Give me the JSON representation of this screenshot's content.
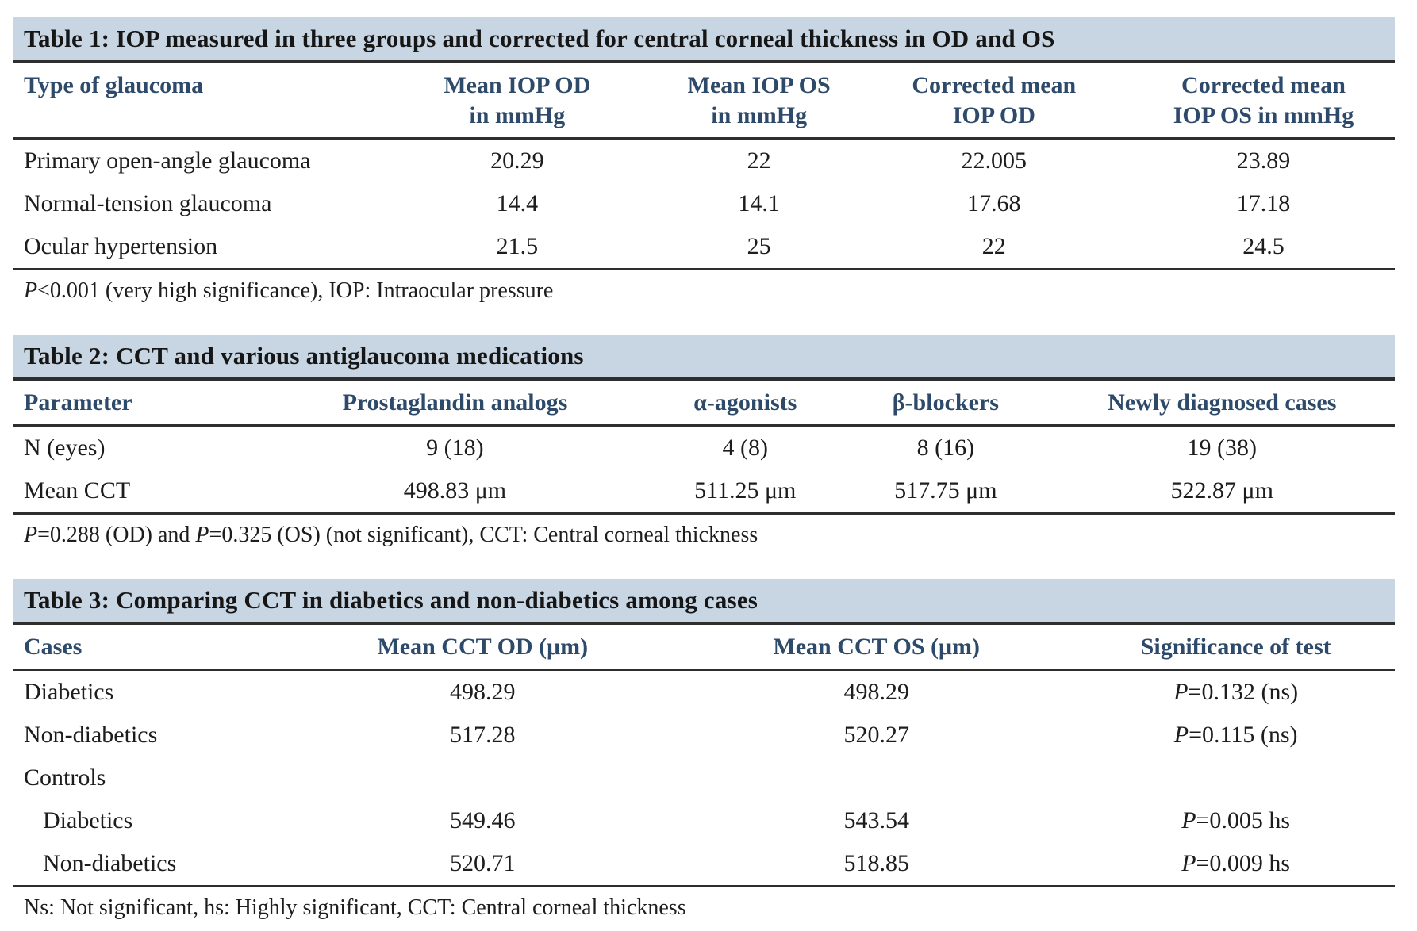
{
  "colors": {
    "title_bar_bg": "#c8d5e2",
    "header_text": "#2e4a6b",
    "body_text": "#1d1d1d",
    "rule": "#2e2e2e"
  },
  "tables": [
    {
      "title": "Table 1: IOP measured in three groups and corrected for central corneal thickness in OD and OS",
      "columns": [
        "Type of glaucoma",
        "Mean IOP OD\nin mmHg",
        "Mean IOP OS\nin mmHg",
        "Corrected mean\nIOP OD",
        "Corrected mean\nIOP OS in mmHg"
      ],
      "rows": [
        [
          "Primary open-angle glaucoma",
          "20.29",
          "22",
          "22.005",
          "23.89"
        ],
        [
          "Normal-tension glaucoma",
          "14.4",
          "14.1",
          "17.68",
          "17.18"
        ],
        [
          "Ocular hypertension",
          "21.5",
          "25",
          "22",
          "24.5"
        ]
      ],
      "footnote": {
        "p1": "P",
        "t1": "<0.001 (very high significance), IOP: Intraocular pressure"
      }
    },
    {
      "title": "Table 2: CCT and various antiglaucoma medications",
      "columns": [
        "Parameter",
        "Prostaglandin analogs",
        "α-agonists",
        "β-blockers",
        "Newly diagnosed cases"
      ],
      "rows": [
        [
          "N (eyes)",
          "9 (18)",
          "4 (8)",
          "8 (16)",
          "19 (38)"
        ],
        [
          "Mean CCT",
          "498.83 μm",
          "511.25 μm",
          "517.75 μm",
          "522.87 μm"
        ]
      ],
      "footnote": {
        "p1": "P",
        "t1": "=0.288 (OD) and ",
        "p2": "P",
        "t2": "=0.325 (OS) (not significant), CCT: Central corneal thickness"
      }
    },
    {
      "title": "Table 3: Comparing CCT in diabetics and non-diabetics among cases",
      "columns": [
        "Cases",
        "Mean CCT OD (μm)",
        "Mean CCT OS (μm)",
        "Significance of test"
      ],
      "rows": [
        {
          "label": "Diabetics",
          "od": "498.29",
          "os": "498.29",
          "sig_p": "P",
          "sig_rest": "=0.132 (ns)"
        },
        {
          "label": "Non-diabetics",
          "od": "517.28",
          "os": "520.27",
          "sig_p": "P",
          "sig_rest": "=0.115 (ns)"
        },
        {
          "label": "Controls",
          "od": "",
          "os": "",
          "sig_p": "",
          "sig_rest": ""
        },
        {
          "label": "Diabetics",
          "od": "549.46",
          "os": "543.54",
          "sig_p": "P",
          "sig_rest": "=0.005 hs"
        },
        {
          "label": "Non-diabetics",
          "od": "520.71",
          "os": "518.85",
          "sig_p": "P",
          "sig_rest": "=0.009 hs"
        }
      ],
      "footnote": {
        "t1": "Ns: Not significant, hs: Highly significant, CCT: Central corneal thickness"
      }
    }
  ]
}
